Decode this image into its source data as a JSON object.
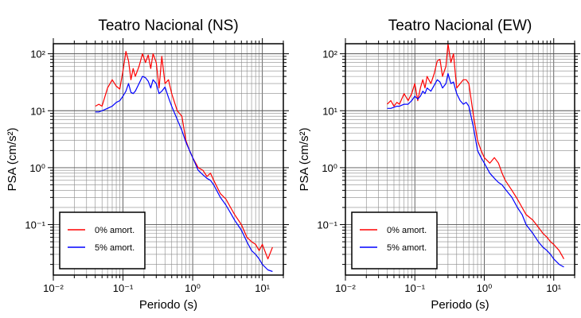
{
  "chart_data": [
    {
      "type": "line",
      "title": "Teatro Nacional (NS)",
      "xlabel": "Periodo (s)",
      "ylabel": "PSA (cm/s²)",
      "xscale": "log",
      "yscale": "log",
      "xlim": [
        0.01,
        20
      ],
      "ylim": [
        0.013,
        150
      ],
      "xtick_labels": [
        "10⁻²",
        "10⁻¹",
        "10⁰",
        "10¹"
      ],
      "ytick_labels": [
        "10⁻¹",
        "10⁰",
        "10¹",
        "10²"
      ],
      "grid": true,
      "legend_position": "bottom-left",
      "series": [
        {
          "name": "0% amort.",
          "color": "#ff0000",
          "x": [
            0.04,
            0.045,
            0.05,
            0.06,
            0.07,
            0.08,
            0.09,
            0.1,
            0.11,
            0.12,
            0.13,
            0.14,
            0.15,
            0.17,
            0.19,
            0.21,
            0.23,
            0.25,
            0.27,
            0.3,
            0.33,
            0.36,
            0.4,
            0.45,
            0.5,
            0.6,
            0.7,
            0.8,
            0.9,
            1.0,
            1.2,
            1.4,
            1.6,
            1.8,
            2.0,
            2.5,
            3.0,
            3.5,
            4.0,
            5.0,
            6.0,
            7.0,
            8.0,
            9.0,
            10.0,
            12.0,
            14.0
          ],
          "y": [
            12,
            13,
            12,
            25,
            35,
            27,
            24,
            50,
            110,
            75,
            35,
            55,
            40,
            60,
            100,
            70,
            95,
            55,
            100,
            70,
            25,
            90,
            30,
            35,
            20,
            10,
            8,
            3,
            2,
            1.5,
            1.0,
            0.9,
            0.7,
            0.8,
            0.6,
            0.35,
            0.28,
            0.2,
            0.15,
            0.1,
            0.06,
            0.05,
            0.045,
            0.035,
            0.045,
            0.025,
            0.04
          ]
        },
        {
          "name": "5% amort.",
          "color": "#0000ff",
          "x": [
            0.04,
            0.045,
            0.05,
            0.06,
            0.07,
            0.08,
            0.09,
            0.1,
            0.11,
            0.12,
            0.13,
            0.14,
            0.15,
            0.17,
            0.19,
            0.21,
            0.23,
            0.25,
            0.27,
            0.3,
            0.33,
            0.36,
            0.4,
            0.45,
            0.5,
            0.6,
            0.7,
            0.8,
            0.9,
            1.0,
            1.2,
            1.4,
            1.6,
            1.8,
            2.0,
            2.5,
            3.0,
            3.5,
            4.0,
            5.0,
            6.0,
            7.0,
            8.0,
            9.0,
            10.0,
            12.0,
            14.0
          ],
          "y": [
            9.5,
            9.5,
            10,
            11,
            12,
            14,
            15,
            18,
            22,
            30,
            21,
            20,
            22,
            30,
            40,
            38,
            33,
            25,
            35,
            30,
            20,
            22,
            26,
            17,
            12,
            7,
            4.5,
            2.8,
            2,
            1.5,
            0.9,
            0.75,
            0.65,
            0.6,
            0.5,
            0.3,
            0.22,
            0.16,
            0.12,
            0.08,
            0.05,
            0.035,
            0.03,
            0.025,
            0.02,
            0.016,
            0.015
          ]
        }
      ]
    },
    {
      "type": "line",
      "title": "Teatro Nacional (EW)",
      "xlabel": "Periodo (s)",
      "ylabel": "PSA (cm/s²)",
      "xscale": "log",
      "yscale": "log",
      "xlim": [
        0.01,
        20
      ],
      "ylim": [
        0.013,
        150
      ],
      "xtick_labels": [
        "10⁻²",
        "10⁻¹",
        "10⁰",
        "10¹"
      ],
      "ytick_labels": [
        "10⁻¹",
        "10⁰",
        "10¹",
        "10²"
      ],
      "grid": true,
      "legend_position": "bottom-left",
      "series": [
        {
          "name": "0% amort.",
          "color": "#ff0000",
          "x": [
            0.04,
            0.045,
            0.05,
            0.055,
            0.06,
            0.07,
            0.08,
            0.09,
            0.1,
            0.11,
            0.12,
            0.13,
            0.14,
            0.15,
            0.17,
            0.19,
            0.21,
            0.23,
            0.25,
            0.28,
            0.3,
            0.33,
            0.36,
            0.4,
            0.45,
            0.5,
            0.55,
            0.6,
            0.7,
            0.8,
            0.9,
            1.0,
            1.2,
            1.4,
            1.6,
            1.8,
            2.0,
            2.5,
            3.0,
            3.5,
            4.0,
            5.0,
            6.0,
            7.0,
            8.0,
            9.0,
            10.0,
            12.0,
            14.0
          ],
          "y": [
            13,
            15,
            12,
            14,
            13,
            20,
            15,
            20,
            30,
            15,
            25,
            35,
            25,
            40,
            30,
            45,
            75,
            80,
            40,
            60,
            150,
            70,
            100,
            25,
            30,
            35,
            35,
            30,
            8,
            3,
            2,
            1.5,
            1.2,
            1.5,
            1.2,
            0.8,
            0.6,
            0.4,
            0.28,
            0.2,
            0.15,
            0.12,
            0.09,
            0.07,
            0.06,
            0.05,
            0.045,
            0.035,
            0.025
          ]
        },
        {
          "name": "5% amort.",
          "color": "#0000ff",
          "x": [
            0.04,
            0.045,
            0.05,
            0.055,
            0.06,
            0.07,
            0.08,
            0.09,
            0.1,
            0.11,
            0.12,
            0.13,
            0.14,
            0.15,
            0.17,
            0.19,
            0.21,
            0.23,
            0.25,
            0.28,
            0.3,
            0.33,
            0.36,
            0.4,
            0.45,
            0.5,
            0.55,
            0.6,
            0.7,
            0.8,
            0.9,
            1.0,
            1.2,
            1.4,
            1.6,
            1.8,
            2.0,
            2.5,
            3.0,
            3.5,
            4.0,
            5.0,
            6.0,
            7.0,
            8.0,
            9.0,
            10.0,
            12.0,
            14.0
          ],
          "y": [
            11,
            11,
            11.5,
            12,
            12,
            13,
            13,
            15,
            18,
            16,
            18,
            22,
            20,
            25,
            22,
            28,
            35,
            32,
            25,
            30,
            45,
            30,
            32,
            20,
            15,
            13,
            14,
            12,
            5,
            2,
            1.5,
            1.2,
            0.8,
            0.65,
            0.55,
            0.5,
            0.42,
            0.3,
            0.2,
            0.15,
            0.1,
            0.07,
            0.05,
            0.04,
            0.035,
            0.03,
            0.025,
            0.02,
            0.018
          ]
        }
      ]
    }
  ]
}
